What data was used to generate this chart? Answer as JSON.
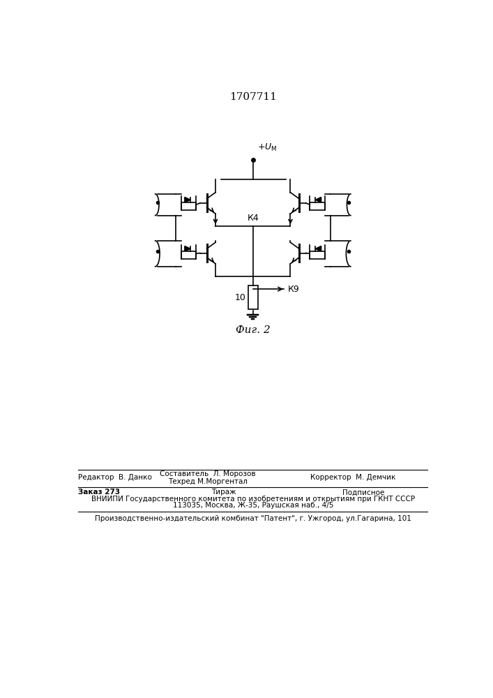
{
  "title": "1707711",
  "fig_label": "Фиг. 2",
  "background_color": "#ffffff",
  "line_color": "#000000",
  "title_fontsize": 11,
  "label_fontsize": 9,
  "page_width": 7.07,
  "page_height": 10.0,
  "footer_editor": "Редактор  В. Данко",
  "footer_composer": "Составитель  Л. Морозов",
  "footer_techred": "Техред М.Моргентал",
  "footer_corrector": "Корректор  М. Демчик",
  "footer_order": "Заказ 273",
  "footer_tirazh": "Тираж",
  "footer_podpisnoe": "Подписное",
  "footer_vniipи": "ВНИИПИ Государственного комитета по изобретениям и открытиям при ГКНТ СССР",
  "footer_address": "113035, Москва, Ж-35, Раушская наб., 4/5",
  "footer_bottom": "Производственно-издательский комбинат \"Патент\", г. Ужгород, ул.Гагарина, 101",
  "label_k4": "К4",
  "label_k9": "К9",
  "label_10": "10",
  "supply_label": "+U"
}
